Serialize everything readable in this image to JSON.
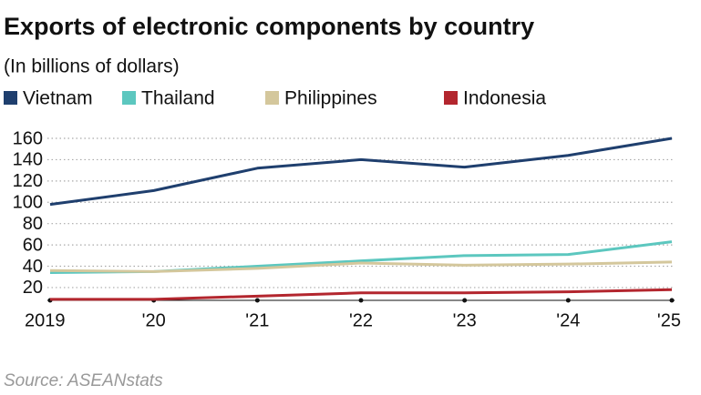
{
  "chart_data": {
    "type": "line",
    "title": "Exports of electronic components by country",
    "subtitle": "(In billions of dollars)",
    "source": "Source: ASEANstats",
    "categories": [
      "2019",
      "'20",
      "'21",
      "'22",
      "'23",
      "'24",
      "'25"
    ],
    "series": [
      {
        "name": "Vietnam",
        "color": "#1f3f6e",
        "values": [
          98,
          111,
          132,
          140,
          133,
          144,
          160
        ]
      },
      {
        "name": "Thailand",
        "color": "#5cc7bf",
        "values": [
          34,
          35,
          40,
          45,
          50,
          51,
          63
        ]
      },
      {
        "name": "Philippines",
        "color": "#d4c79c",
        "values": [
          36,
          35,
          38,
          43,
          41,
          42,
          44
        ]
      },
      {
        "name": "Indonesia",
        "color": "#b3262e",
        "values": [
          9,
          9,
          12,
          15,
          15,
          16,
          18
        ]
      }
    ],
    "ylim": [
      8,
      160
    ],
    "yticks": [
      20,
      40,
      60,
      80,
      100,
      120,
      140,
      160
    ],
    "grid": true
  }
}
